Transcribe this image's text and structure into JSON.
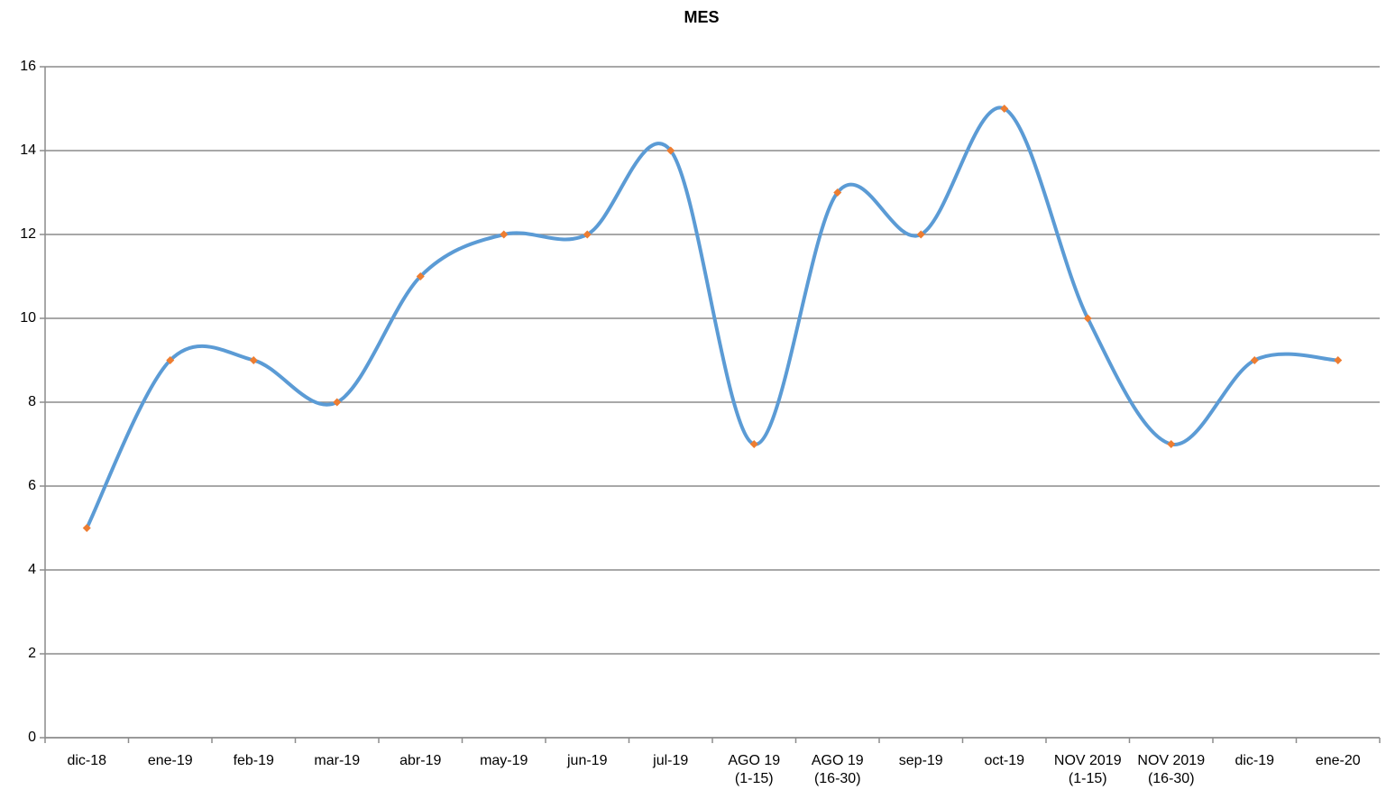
{
  "chart_data": {
    "type": "line",
    "title": "MES",
    "categories": [
      "dic-18",
      "ene-19",
      "feb-19",
      "mar-19",
      "abr-19",
      "may-19",
      "jun-19",
      "jul-19",
      "AGO 19\n(1-15)",
      "AGO 19\n(16-30)",
      "sep-19",
      "oct-19",
      "NOV  2019\n(1-15)",
      "NOV  2019\n(16-30)",
      "dic-19",
      "ene-20"
    ],
    "series": [
      {
        "color": "#5b9bd5",
        "marker_color": "#ed7d31",
        "values": [
          5,
          9,
          9,
          8,
          11,
          12,
          12,
          14,
          7,
          13,
          12,
          15,
          10,
          7,
          9,
          9
        ]
      }
    ],
    "smooth": true,
    "ylim": [
      0,
      16
    ],
    "yticks": [
      0,
      2,
      4,
      6,
      8,
      10,
      12,
      14,
      16
    ],
    "grid": true
  }
}
